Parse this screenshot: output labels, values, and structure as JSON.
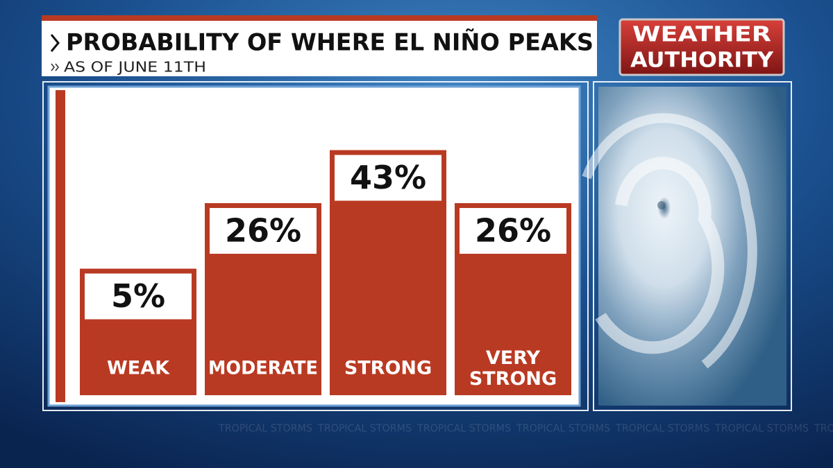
{
  "chart_data": {
    "type": "bar",
    "title": "PROBABILITY OF WHERE EL NIÑO PEAKS",
    "subtitle": "AS OF JUNE 11TH",
    "categories": [
      "WEAK",
      "MODERATE",
      "STRONG",
      "VERY STRONG"
    ],
    "values": [
      5,
      26,
      43,
      26
    ],
    "value_labels": [
      "5%",
      "26%",
      "43%",
      "26%"
    ],
    "color": "#b93a22"
  },
  "branding": {
    "logo_line1": "WEATHER",
    "logo_line2": "AUTHORITY",
    "watermark": "TROPICAL STORMS"
  }
}
